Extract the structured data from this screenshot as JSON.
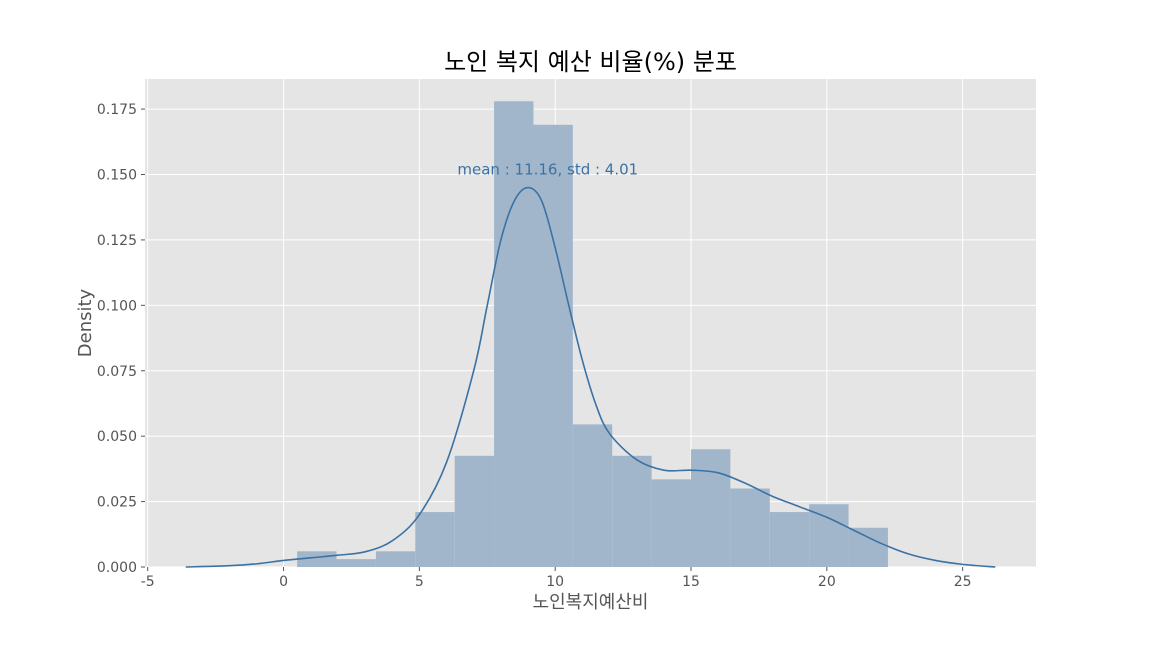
{
  "chart_data": {
    "type": "bar",
    "title": "노인 복지 예산 비율(%) 분포",
    "xlabel": "노인복지예산비",
    "ylabel": "Density",
    "xlim": [
      -5.1,
      27.7
    ],
    "ylim": [
      0,
      0.1865
    ],
    "x_ticks": [
      -5,
      0,
      5,
      10,
      15,
      20,
      25
    ],
    "x_tick_labels": [
      "-5",
      "0",
      "5",
      "10",
      "15",
      "20",
      "25"
    ],
    "y_ticks": [
      0,
      0.025,
      0.05,
      0.075,
      0.1,
      0.125,
      0.15,
      0.175
    ],
    "y_tick_labels": [
      "0.000",
      "0.025",
      "0.050",
      "0.075",
      "0.100",
      "0.125",
      "0.150",
      "0.175"
    ],
    "grid": true,
    "histogram": {
      "bin_edges": [
        0.5,
        1.95,
        3.4,
        4.85,
        6.3,
        7.75,
        9.2,
        10.65,
        12.1,
        13.55,
        15.0,
        16.45,
        17.9,
        19.35,
        20.8,
        22.25
      ],
      "values": [
        0.006,
        0.003,
        0.006,
        0.021,
        0.0425,
        0.178,
        0.169,
        0.0545,
        0.0425,
        0.0335,
        0.045,
        0.03,
        0.021,
        0.024,
        0.015
      ],
      "color": "#a2b6cb"
    },
    "kde": {
      "x": [
        -3.6,
        -2,
        -1,
        0,
        1,
        2,
        3,
        4,
        5,
        6,
        7,
        7.5,
        8,
        8.5,
        9,
        9.5,
        10,
        10.5,
        11,
        11.5,
        12,
        13,
        14,
        15,
        16,
        17,
        18,
        19,
        20,
        21,
        22,
        23,
        24,
        25,
        26.2
      ],
      "y": [
        0.0,
        0.0005,
        0.0012,
        0.0025,
        0.0035,
        0.0045,
        0.0058,
        0.01,
        0.02,
        0.04,
        0.075,
        0.1,
        0.125,
        0.14,
        0.145,
        0.14,
        0.122,
        0.1,
        0.079,
        0.062,
        0.051,
        0.041,
        0.037,
        0.037,
        0.036,
        0.032,
        0.027,
        0.023,
        0.019,
        0.014,
        0.009,
        0.005,
        0.0025,
        0.001,
        0.0
      ],
      "color": "#3a72a4"
    },
    "annotation": {
      "text": "mean : 11.16, std : 4.01",
      "x": 6.4,
      "y": 0.15,
      "color": "#3a72a4"
    },
    "colors": {
      "plot_background": "#e5e5e5",
      "grid": "#ffffff"
    }
  }
}
